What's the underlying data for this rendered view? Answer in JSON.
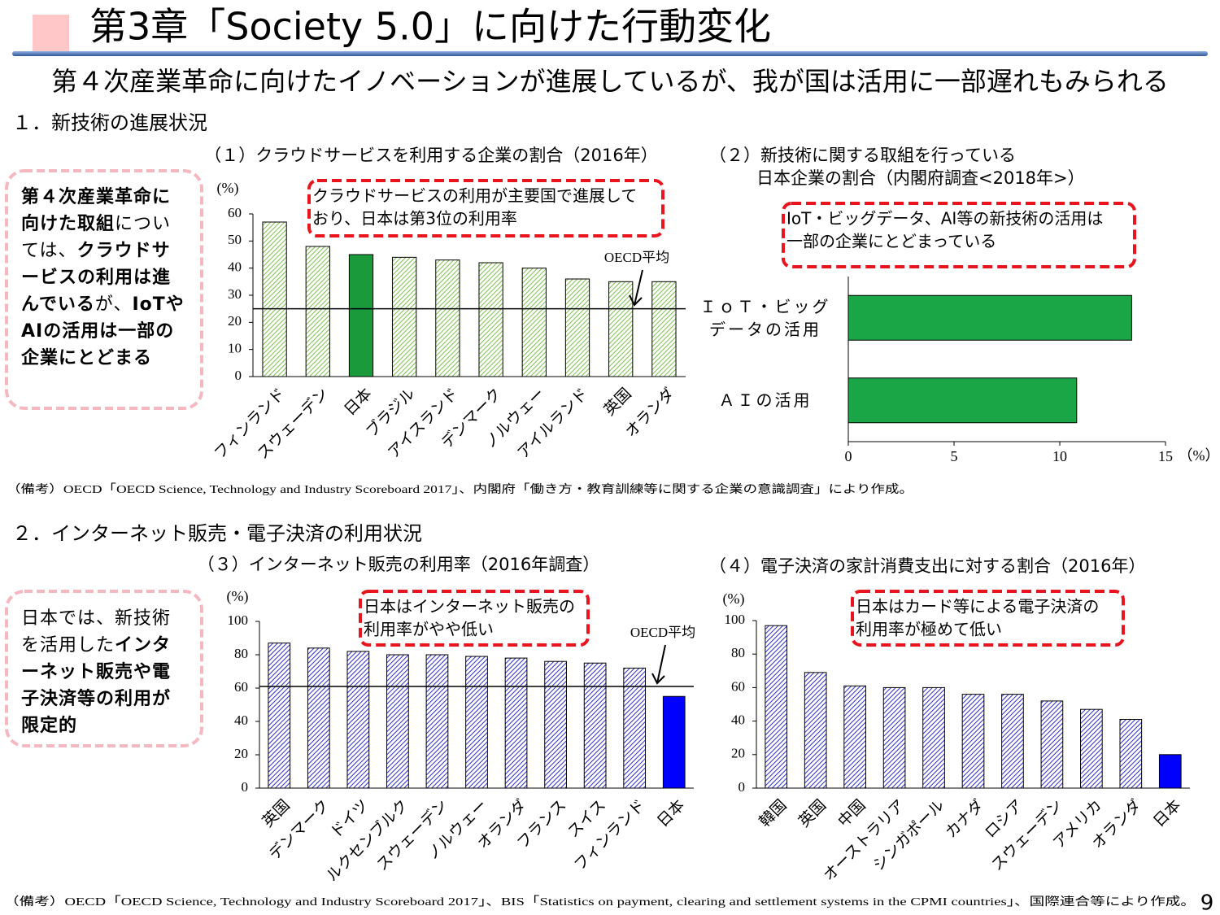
{
  "header": {
    "title": "第3章「Society 5.0」に向けた行動変化",
    "subtitle": "第４次産業革命に向けたイノベーションが進展しているが、我が国は活用に一部遅れもみられる"
  },
  "sections": [
    "１．新技術の進展状況",
    "２．インターネット販売・電子決済の利用状況"
  ],
  "notes": [
    [
      {
        "text": "第４次産業革命に向けた取組",
        "bold": true
      },
      {
        "text": "については、"
      },
      {
        "text": "クラウドサービスの利用は進んでいる",
        "bold": true
      },
      {
        "text": "が、"
      },
      {
        "text": "IoTやAIの活用は一部の企業にとどまる",
        "bold": true
      }
    ],
    [
      {
        "text": "日本では、新技術を活用した"
      },
      {
        "text": "インターネット販売や電子決済等の利用が限定的",
        "bold": true
      }
    ]
  ],
  "sources": [
    "（備考）OECD「OECD Science, Technology and Industry Scoreboard 2017」、内閣府「働き方・教育訓練等に関する企業の意識調査」により作成。",
    "（備考）OECD「OECD Science, Technology and Industry Scoreboard 2017」、BIS「Statistics on payment, clearing and settlement systems in the CPMI countries」、国際連合等により作成。"
  ],
  "page_number": 9,
  "chart_data": [
    {
      "type": "bar",
      "title": [
        "（１）クラウドサービスを利用する企業の割合（2016年）"
      ],
      "y_unit": "(%)",
      "categories": [
        "フィンランド",
        "スウェーデン",
        "日本",
        "ブラジル",
        "アイスランド",
        "デンマーク",
        "ノルウェー",
        "アイルランド",
        "英国",
        "オランダ"
      ],
      "values": [
        57,
        48,
        45,
        44,
        43,
        42,
        40,
        36,
        35,
        35
      ],
      "colors": [
        "#7fbf4d",
        "#7fbf4d",
        "#1a9a3a",
        "#7fbf4d",
        "#7fbf4d",
        "#7fbf4d",
        "#7fbf4d",
        "#7fbf4d",
        "#7fbf4d",
        "#7fbf4d"
      ],
      "patterns": [
        "hatch",
        "hatch",
        "solid",
        "hatch",
        "hatch",
        "hatch",
        "hatch",
        "hatch",
        "hatch",
        "hatch"
      ],
      "ylim": [
        0,
        60
      ],
      "yticks": [
        0,
        10,
        20,
        30,
        40,
        50,
        60
      ],
      "reference_line": {
        "value": 25,
        "label": "OECD平均"
      },
      "annotation": [
        "クラウドサービスの利用が主要国で進展して",
        "おり、日本は第3位の利用率"
      ]
    },
    {
      "type": "barh",
      "title": [
        "（２）新技術に関する取組を行っている",
        "日本企業の割合（内閣府調査<2018年>）"
      ],
      "x_unit": "（%）",
      "categories": [
        "ＩｏＴ・ビッグデータの活用",
        "ＡＩの活用"
      ],
      "values": [
        13.4,
        10.8
      ],
      "color": "#1aa646",
      "xlim": [
        0,
        15
      ],
      "xticks": [
        0,
        5,
        10,
        15
      ],
      "annotation": [
        "IoT・ビッグデータ、AI等の新技術の活用は",
        "一部の企業にとどまっている"
      ]
    },
    {
      "type": "bar",
      "title": [
        "（３）インターネット販売の利用率（2016年調査）"
      ],
      "y_unit": "(%)",
      "categories": [
        "英国",
        "デンマーク",
        "ドイツ",
        "ルクセンブルク",
        "スウェーデン",
        "ノルウェー",
        "オランダ",
        "フランス",
        "スイス",
        "フィンランド",
        "日本"
      ],
      "values": [
        87,
        84,
        82,
        80,
        80,
        79,
        78,
        76,
        75,
        72,
        55
      ],
      "colors": [
        "#2b2bd6",
        "#2b2bd6",
        "#2b2bd6",
        "#2b2bd6",
        "#2b2bd6",
        "#2b2bd6",
        "#2b2bd6",
        "#2b2bd6",
        "#2b2bd6",
        "#2b2bd6",
        "#0000ff"
      ],
      "patterns": [
        "hatch",
        "hatch",
        "hatch",
        "hatch",
        "hatch",
        "hatch",
        "hatch",
        "hatch",
        "hatch",
        "hatch",
        "solid"
      ],
      "ylim": [
        0,
        100
      ],
      "yticks": [
        0,
        20,
        40,
        60,
        80,
        100
      ],
      "reference_line": {
        "value": 61,
        "label": "OECD平均"
      },
      "annotation": [
        "日本はインターネット販売の",
        "利用率がやや低い"
      ]
    },
    {
      "type": "bar",
      "title": [
        "（４）電子決済の家計消費支出に対する割合（2016年）"
      ],
      "y_unit": "(%)",
      "categories": [
        "韓国",
        "英国",
        "中国",
        "オーストラリア",
        "シンガポール",
        "カナダ",
        "ロシア",
        "スウェーデン",
        "アメリカ",
        "オランダ",
        "日本"
      ],
      "values": [
        97,
        69,
        61,
        60,
        60,
        56,
        56,
        52,
        47,
        41,
        20
      ],
      "colors": [
        "#2b2bd6",
        "#2b2bd6",
        "#2b2bd6",
        "#2b2bd6",
        "#2b2bd6",
        "#2b2bd6",
        "#2b2bd6",
        "#2b2bd6",
        "#2b2bd6",
        "#2b2bd6",
        "#0000ff"
      ],
      "patterns": [
        "hatch",
        "hatch",
        "hatch",
        "hatch",
        "hatch",
        "hatch",
        "hatch",
        "hatch",
        "hatch",
        "hatch",
        "solid"
      ],
      "ylim": [
        0,
        100
      ],
      "yticks": [
        0,
        20,
        40,
        60,
        80,
        100
      ],
      "annotation": [
        "日本はカード等による電子決済の",
        "利用率が極めて低い"
      ]
    }
  ]
}
